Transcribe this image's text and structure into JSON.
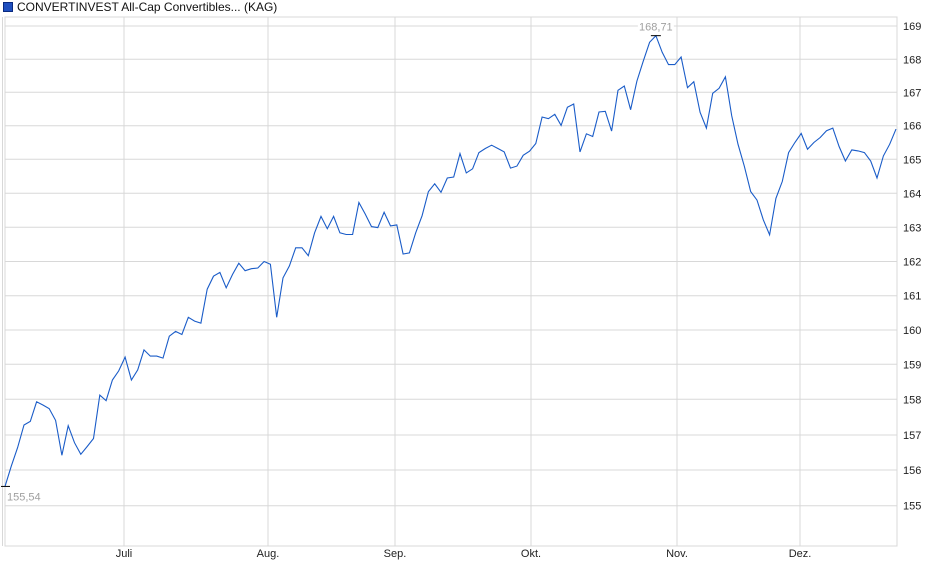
{
  "chart_data": {
    "type": "line",
    "title": "",
    "legend": {
      "position": "top-left",
      "entries": [
        "CONVERTINVEST All-Cap Convertibles... (KAG)"
      ]
    },
    "series": [
      {
        "name": "CONVERTINVEST All-Cap Convertibles... (KAG)",
        "color": "#1a5cc8",
        "values": [
          155.54,
          156.11,
          156.64,
          157.28,
          157.38,
          157.93,
          157.84,
          157.74,
          157.41,
          156.42,
          157.26,
          156.78,
          156.45,
          156.67,
          156.9,
          158.12,
          157.96,
          158.55,
          158.81,
          159.21,
          158.55,
          158.84,
          159.42,
          159.24,
          159.24,
          159.18,
          159.82,
          159.96,
          159.87,
          160.37,
          160.26,
          160.2,
          161.19,
          161.57,
          161.68,
          161.23,
          161.62,
          161.95,
          161.73,
          161.79,
          161.81,
          162.0,
          161.92,
          160.37,
          161.52,
          161.87,
          162.4,
          162.4,
          162.17,
          162.84,
          163.32,
          162.96,
          163.32,
          162.84,
          162.79,
          162.79,
          163.73,
          163.39,
          163.02,
          162.99,
          163.44,
          163.04,
          163.07,
          162.22,
          162.25,
          162.84,
          163.34,
          164.05,
          164.28,
          164.03,
          164.45,
          164.48,
          165.17,
          164.6,
          164.72,
          165.2,
          165.32,
          165.42,
          165.32,
          165.22,
          164.74,
          164.8,
          165.12,
          165.24,
          165.47,
          166.26,
          166.21,
          166.34,
          166.01,
          166.55,
          166.65,
          165.22,
          165.76,
          165.68,
          166.41,
          166.43,
          165.84,
          167.06,
          167.19,
          166.48,
          167.34,
          167.94,
          168.51,
          168.71,
          168.21,
          167.84,
          167.84,
          168.07,
          167.14,
          167.32,
          166.4,
          165.93,
          166.97,
          167.12,
          167.47,
          166.3,
          165.45,
          164.8,
          164.05,
          163.8,
          163.22,
          162.78,
          163.85,
          164.35,
          165.2,
          165.5,
          165.77,
          165.3,
          165.5,
          165.65,
          165.85,
          165.93,
          165.38,
          164.95,
          165.28,
          165.25,
          165.2,
          164.95,
          164.45,
          165.1,
          165.45,
          165.9
        ]
      }
    ],
    "x_tick_labels": [
      "Juli",
      "Aug.",
      "Sep.",
      "Okt.",
      "Nov.",
      "Dez."
    ],
    "y_tick_labels": [
      "155",
      "156",
      "157",
      "158",
      "159",
      "160",
      "161",
      "162",
      "163",
      "164",
      "165",
      "166",
      "167",
      "168",
      "169"
    ],
    "y_axis_position": "right",
    "ylim": [
      154.4,
      169.3
    ],
    "grid": true,
    "annotations": {
      "min_label": "155,54",
      "max_label": "168,71"
    }
  }
}
